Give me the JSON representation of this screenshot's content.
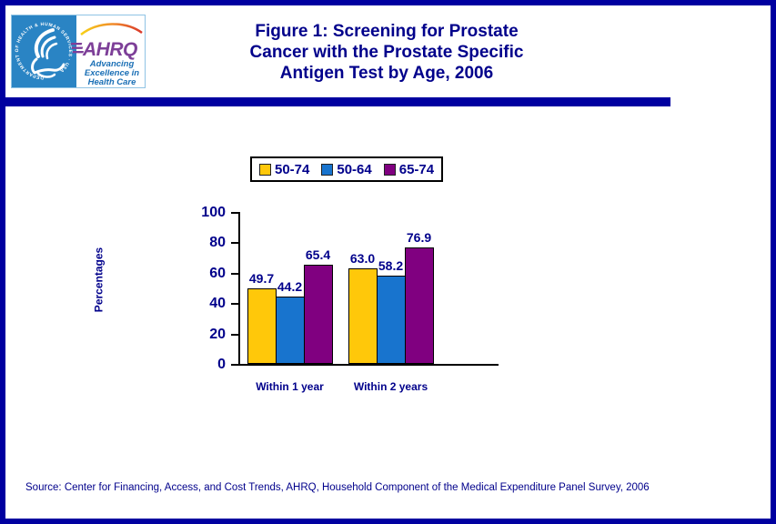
{
  "page": {
    "background": "#FFFFFF",
    "border_color": "#0000A0",
    "text_color": "#00008B"
  },
  "header": {
    "logo": {
      "seal_text": "DEPARTMENT OF HEALTH & HUMAN SERVICES · USA",
      "ahrq_acronym": "AHRQ",
      "tagline_lines": [
        "Advancing",
        "Excellence in",
        "Health Care"
      ],
      "hhs_blue": "#2A84C4",
      "ahrq_purple": "#7D3F98",
      "tagline_blue": "#1A6FB5"
    },
    "title_lines": [
      "Figure 1: Screening for Prostate",
      "Cancer with the Prostate Specific",
      "Antigen Test by Age, 2006"
    ]
  },
  "chart_data": {
    "type": "bar",
    "title": "Figure 1: Screening for Prostate Cancer with the Prostate Specific Antigen Test by Age, 2006",
    "categories": [
      "Within 1 year",
      "Within 2 years"
    ],
    "series": [
      {
        "name": "50-74",
        "color": "#FFC80A",
        "values": [
          49.7,
          63.0
        ],
        "labels": [
          "49.7",
          "63.0"
        ]
      },
      {
        "name": "50-64",
        "color": "#1874CE",
        "values": [
          44.2,
          58.2
        ],
        "labels": [
          "44.2",
          "58.2"
        ]
      },
      {
        "name": "65-74",
        "color": "#800080",
        "values": [
          65.4,
          76.9
        ],
        "labels": [
          "65.4",
          "76.9"
        ]
      }
    ],
    "ylabel": "Percentages",
    "ylim": [
      0,
      100
    ],
    "yticks": [
      0,
      20,
      40,
      60,
      80,
      100
    ],
    "legend_position": "top",
    "grid": false,
    "bar_border_color": "#000000",
    "axis_color": "#000000"
  },
  "footer": {
    "source": "Source: Center for Financing, Access, and Cost Trends, AHRQ, Household Component of the Medical Expenditure Panel Survey, 2006"
  }
}
